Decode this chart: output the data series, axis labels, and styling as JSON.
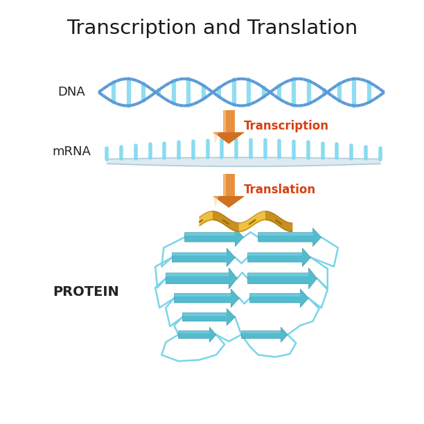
{
  "title": "Transcription and Translation",
  "title_fontsize": 21,
  "title_color": "#1a1a1a",
  "background_color": "#ffffff",
  "dna_label": "DNA",
  "mrna_label": "mRNA",
  "protein_label": "PROTEIN",
  "transcription_label": "Transcription",
  "translation_label": "Translation",
  "label_color": "#222222",
  "label_fontsize": 12,
  "process_label_color": "#d94010",
  "process_label_fontsize": 12,
  "dna_strand_color": "#5b9bd5",
  "dna_bar_color": "#7dd8f0",
  "mrna_bar_color": "#7dd8f0",
  "mrna_ribbon_color": "#c0dce8",
  "mrna_ribbon_edge": "#a8c8d8",
  "arrow_shaft_color": "#e89040",
  "arrow_head_color": "#d07020",
  "arrow_hi_color": "#f8d090",
  "protein_sheet_color": "#4ab8cc",
  "protein_sheet_hi": "#80d8ec",
  "protein_sheet_edge": "#2a8898",
  "protein_loop_color": "#7ad4e8",
  "protein_helix_color": "#f0c040",
  "protein_helix_dark": "#a07010",
  "protein_helix_mid": "#c89020"
}
